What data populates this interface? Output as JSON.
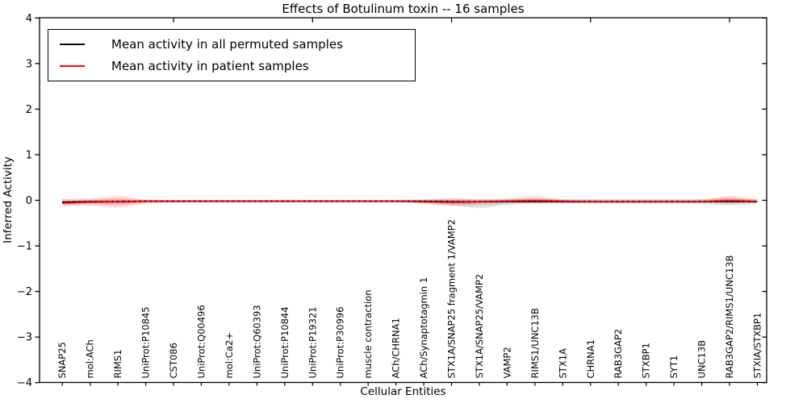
{
  "title": "Effects of Botulinum toxin -- 16 samples",
  "legend": {
    "items": [
      {
        "label": "Mean activity in all permuted samples",
        "color": "#000000"
      },
      {
        "label": "Mean activity in patient samples",
        "color": "#ff0000"
      }
    ]
  },
  "axes": {
    "x_label": "Cellular Entities",
    "y_label": "Inferred Activity",
    "y_tick_values": [
      4,
      3,
      2,
      1,
      0,
      -1,
      -2,
      -3,
      -4
    ],
    "y_tick_labels": [
      "4",
      "3",
      "2",
      "1",
      "0",
      "−1",
      "−2",
      "−3",
      "−4"
    ]
  },
  "chart_data": {
    "type": "line",
    "title": "Effects of Botulinum toxin -- 16 samples",
    "xlabel": "Cellular Entities",
    "ylabel": "Inferred Activity",
    "ylim": [
      -4,
      4
    ],
    "grid": false,
    "legend_position": "upper left",
    "categories": [
      "SNAP25",
      "mol:ACh",
      "RIMS1",
      "UniProt:P10845",
      "CST086",
      "UniProt:Q00496",
      "mol:Ca2+",
      "UniProt:Q60393",
      "UniProt:P10844",
      "UniProt:P19321",
      "UniProt:P30996",
      "muscle contraction",
      "ACh/CHRNA1",
      "ACh/Synaptotagmin 1",
      "STX1A/SNAP25 fragment 1/VAMP2",
      "STX1A/SNAP25/VAMP2",
      "VAMP2",
      "RIMS1/UNC13B",
      "STX1A",
      "CHRNA1",
      "RAB3GAP2",
      "STXBP1",
      "SYT1",
      "UNC13B",
      "RAB3GAP2/RIMS1/UNC13B",
      "STXIA/STXBP1"
    ],
    "x_major_tick_indices": [
      4,
      9,
      14,
      19,
      24
    ],
    "series": [
      {
        "name": "Mean activity in all permuted samples",
        "color": "#000000",
        "band_color": "#999999",
        "values": [
          -0.04,
          -0.03,
          -0.03,
          -0.02,
          -0.02,
          -0.02,
          -0.02,
          -0.02,
          -0.02,
          -0.02,
          -0.02,
          -0.02,
          -0.02,
          -0.02,
          -0.03,
          -0.03,
          -0.03,
          -0.03,
          -0.03,
          -0.03,
          -0.03,
          -0.03,
          -0.03,
          -0.03,
          -0.03,
          -0.03
        ],
        "band_upper": [
          0.02,
          0.01,
          0.01,
          0.01,
          0.01,
          0.01,
          0.01,
          0.01,
          0.01,
          0.01,
          0.01,
          0.01,
          0.01,
          0.02,
          0.03,
          0.03,
          0.03,
          0.03,
          0.03,
          0.03,
          0.03,
          0.03,
          0.03,
          0.03,
          0.04,
          0.03
        ],
        "band_lower": [
          -0.08,
          -0.06,
          -0.06,
          -0.05,
          -0.05,
          -0.05,
          -0.05,
          -0.05,
          -0.05,
          -0.05,
          -0.05,
          -0.05,
          -0.05,
          -0.07,
          -0.11,
          -0.17,
          -0.1,
          -0.08,
          -0.08,
          -0.08,
          -0.08,
          -0.08,
          -0.08,
          -0.08,
          -0.11,
          -0.08
        ]
      },
      {
        "name": "Mean activity in patient samples",
        "color": "#ff0000",
        "band_color": "#ff0000",
        "values": [
          -0.06,
          -0.04,
          -0.03,
          -0.02,
          -0.02,
          -0.02,
          -0.02,
          -0.02,
          -0.02,
          -0.02,
          -0.02,
          -0.02,
          -0.02,
          -0.03,
          -0.04,
          -0.03,
          -0.02,
          -0.01,
          -0.02,
          -0.03,
          -0.03,
          -0.03,
          -0.03,
          -0.03,
          -0.01,
          -0.03
        ],
        "band_upper": [
          0.03,
          0.05,
          0.1,
          0.02,
          0.01,
          0.01,
          0.01,
          0.01,
          0.01,
          0.01,
          0.01,
          0.01,
          0.01,
          0.02,
          0.05,
          0.02,
          0.04,
          0.09,
          0.02,
          0.01,
          0.01,
          0.01,
          0.01,
          0.02,
          0.1,
          0.02
        ],
        "band_lower": [
          -0.14,
          -0.12,
          -0.17,
          -0.08,
          -0.06,
          -0.05,
          -0.05,
          -0.05,
          -0.05,
          -0.05,
          -0.05,
          -0.05,
          -0.05,
          -0.07,
          -0.13,
          -0.09,
          -0.07,
          -0.06,
          -0.06,
          -0.06,
          -0.06,
          -0.06,
          -0.06,
          -0.06,
          -0.07,
          -0.06
        ]
      }
    ]
  }
}
